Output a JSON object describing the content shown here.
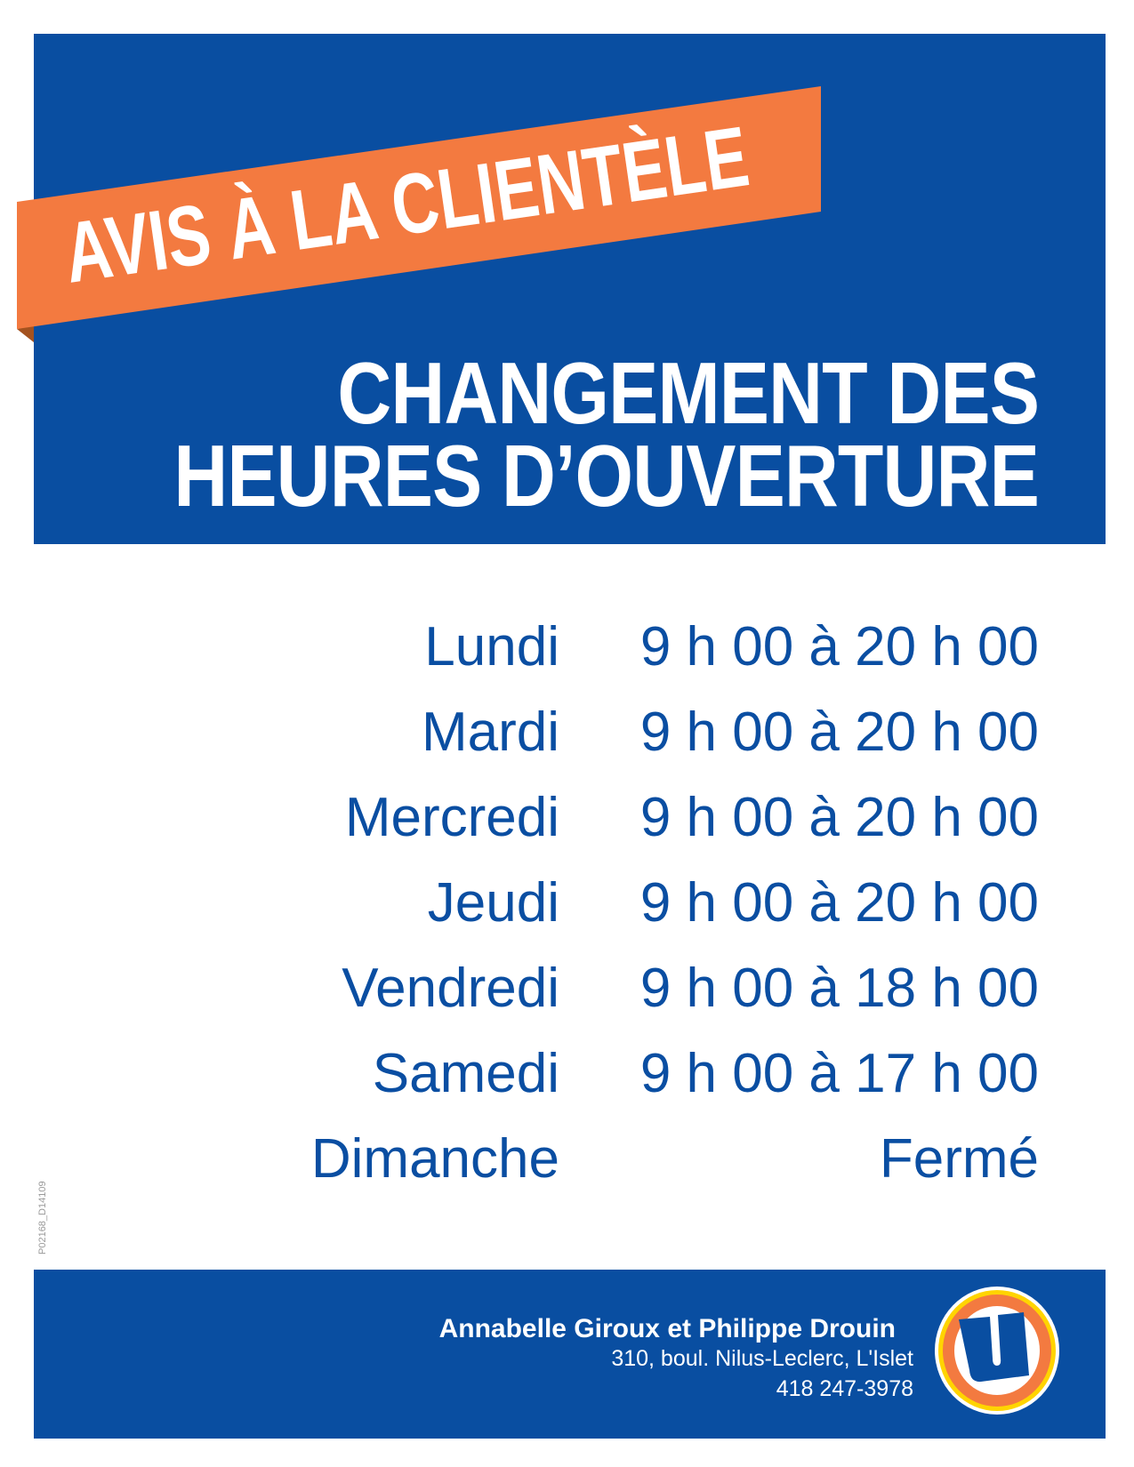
{
  "notice": {
    "banner": "AVIS À LA CLIENTÈLE",
    "headline_line1": "CHANGEMENT DES",
    "headline_line2": "HEURES D’OUVERTURE"
  },
  "schedule": [
    {
      "day": "Lundi",
      "hours": "9 h 00 à 20 h 00"
    },
    {
      "day": "Mardi",
      "hours": "9 h 00 à 20 h 00"
    },
    {
      "day": "Mercredi",
      "hours": "9 h 00 à 20 h 00"
    },
    {
      "day": "Jeudi",
      "hours": "9 h 00 à 20 h 00"
    },
    {
      "day": "Vendredi",
      "hours": "9 h 00 à 18 h 00"
    },
    {
      "day": "Samedi",
      "hours": "9 h 00 à 17 h 00"
    },
    {
      "day": "Dimanche",
      "hours": "Fermé"
    }
  ],
  "footer": {
    "owners": "Annabelle Giroux et Philippe Drouin",
    "address": "310, boul. Nilus-Leclerc, L'Islet",
    "phone": "418 247-3978",
    "logo_letter": "U"
  },
  "document_code": "P02168_D14109",
  "colors": {
    "brand_blue": "#094ea1",
    "ribbon_orange": "#f37a40",
    "logo_yellow": "#ffd400"
  }
}
